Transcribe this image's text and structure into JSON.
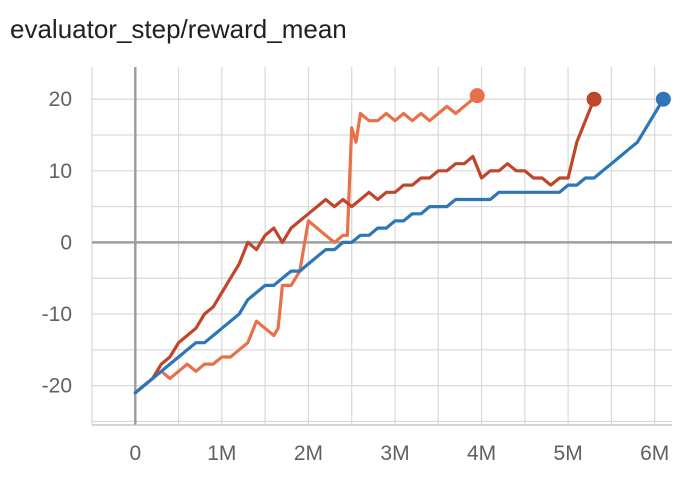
{
  "chart_data": {
    "type": "line",
    "title": "evaluator_step/reward_mean",
    "xlabel": "",
    "ylabel": "",
    "xlim": [
      -0.5,
      6.2
    ],
    "ylim": [
      -25.5,
      24.5
    ],
    "x_ticks": [
      0,
      1,
      2,
      3,
      4,
      5,
      6
    ],
    "x_tick_labels": [
      "0",
      "1M",
      "2M",
      "3M",
      "4M",
      "5M",
      "6M"
    ],
    "y_ticks": [
      -20,
      -10,
      0,
      10,
      20
    ],
    "y_tick_labels": [
      "-20",
      "-10",
      "0",
      "10",
      "20"
    ],
    "grid": true,
    "legend": "none",
    "series": [
      {
        "color": "#e8714a",
        "x": [
          0.0,
          0.1,
          0.2,
          0.3,
          0.4,
          0.5,
          0.6,
          0.7,
          0.8,
          0.9,
          1.0,
          1.1,
          1.2,
          1.3,
          1.4,
          1.5,
          1.6,
          1.65,
          1.7,
          1.8,
          1.9,
          2.0,
          2.1,
          2.2,
          2.3,
          2.4,
          2.45,
          2.5,
          2.55,
          2.6,
          2.7,
          2.8,
          2.9,
          3.0,
          3.1,
          3.2,
          3.3,
          3.4,
          3.5,
          3.6,
          3.7,
          3.8,
          3.9,
          3.95
        ],
        "y": [
          -21,
          -20,
          -19,
          -18,
          -19,
          -18,
          -17,
          -18,
          -17,
          -17,
          -16,
          -16,
          -15,
          -14,
          -11,
          -12,
          -13,
          -12,
          -6,
          -6,
          -4,
          3,
          2,
          1,
          0,
          1,
          1,
          16,
          14,
          18,
          17,
          17,
          18,
          17,
          18,
          17,
          18,
          17,
          18,
          19,
          18,
          19,
          20,
          20.5
        ]
      },
      {
        "color": "#c0462a",
        "x": [
          0.0,
          0.1,
          0.2,
          0.3,
          0.4,
          0.5,
          0.6,
          0.7,
          0.8,
          0.9,
          1.0,
          1.1,
          1.2,
          1.3,
          1.4,
          1.5,
          1.6,
          1.7,
          1.8,
          1.9,
          2.0,
          2.1,
          2.2,
          2.3,
          2.4,
          2.5,
          2.6,
          2.7,
          2.8,
          2.9,
          3.0,
          3.1,
          3.2,
          3.3,
          3.4,
          3.5,
          3.6,
          3.7,
          3.8,
          3.9,
          4.0,
          4.1,
          4.2,
          4.3,
          4.4,
          4.5,
          4.6,
          4.7,
          4.8,
          4.9,
          5.0,
          5.1,
          5.2,
          5.3
        ],
        "y": [
          -21,
          -20,
          -19,
          -17,
          -16,
          -14,
          -13,
          -12,
          -10,
          -9,
          -7,
          -5,
          -3,
          0,
          -1,
          1,
          2,
          0,
          2,
          3,
          4,
          5,
          6,
          5,
          6,
          5,
          6,
          7,
          6,
          7,
          7,
          8,
          8,
          9,
          9,
          10,
          10,
          11,
          11,
          12,
          9,
          10,
          10,
          11,
          10,
          10,
          9,
          9,
          8,
          9,
          9,
          14,
          17,
          20
        ]
      },
      {
        "color": "#2e76b8",
        "x": [
          0.0,
          0.1,
          0.2,
          0.3,
          0.4,
          0.5,
          0.6,
          0.7,
          0.8,
          0.9,
          1.0,
          1.1,
          1.2,
          1.3,
          1.4,
          1.5,
          1.6,
          1.7,
          1.8,
          1.9,
          2.0,
          2.1,
          2.2,
          2.3,
          2.4,
          2.5,
          2.6,
          2.7,
          2.8,
          2.9,
          3.0,
          3.1,
          3.2,
          3.3,
          3.4,
          3.5,
          3.6,
          3.7,
          3.8,
          3.9,
          4.0,
          4.1,
          4.2,
          4.3,
          4.4,
          4.5,
          4.6,
          4.7,
          4.8,
          4.9,
          5.0,
          5.1,
          5.2,
          5.3,
          5.4,
          5.5,
          5.6,
          5.7,
          5.8,
          5.9,
          6.0,
          6.1
        ],
        "y": [
          -21,
          -20,
          -19,
          -18,
          -17,
          -16,
          -15,
          -14,
          -14,
          -13,
          -12,
          -11,
          -10,
          -8,
          -7,
          -6,
          -6,
          -5,
          -4,
          -4,
          -3,
          -2,
          -1,
          -1,
          0,
          0,
          1,
          1,
          2,
          2,
          3,
          3,
          4,
          4,
          5,
          5,
          5,
          6,
          6,
          6,
          6,
          6,
          7,
          7,
          7,
          7,
          7,
          7,
          7,
          7,
          8,
          8,
          9,
          9,
          10,
          11,
          12,
          13,
          14,
          16,
          18,
          20
        ]
      }
    ]
  }
}
